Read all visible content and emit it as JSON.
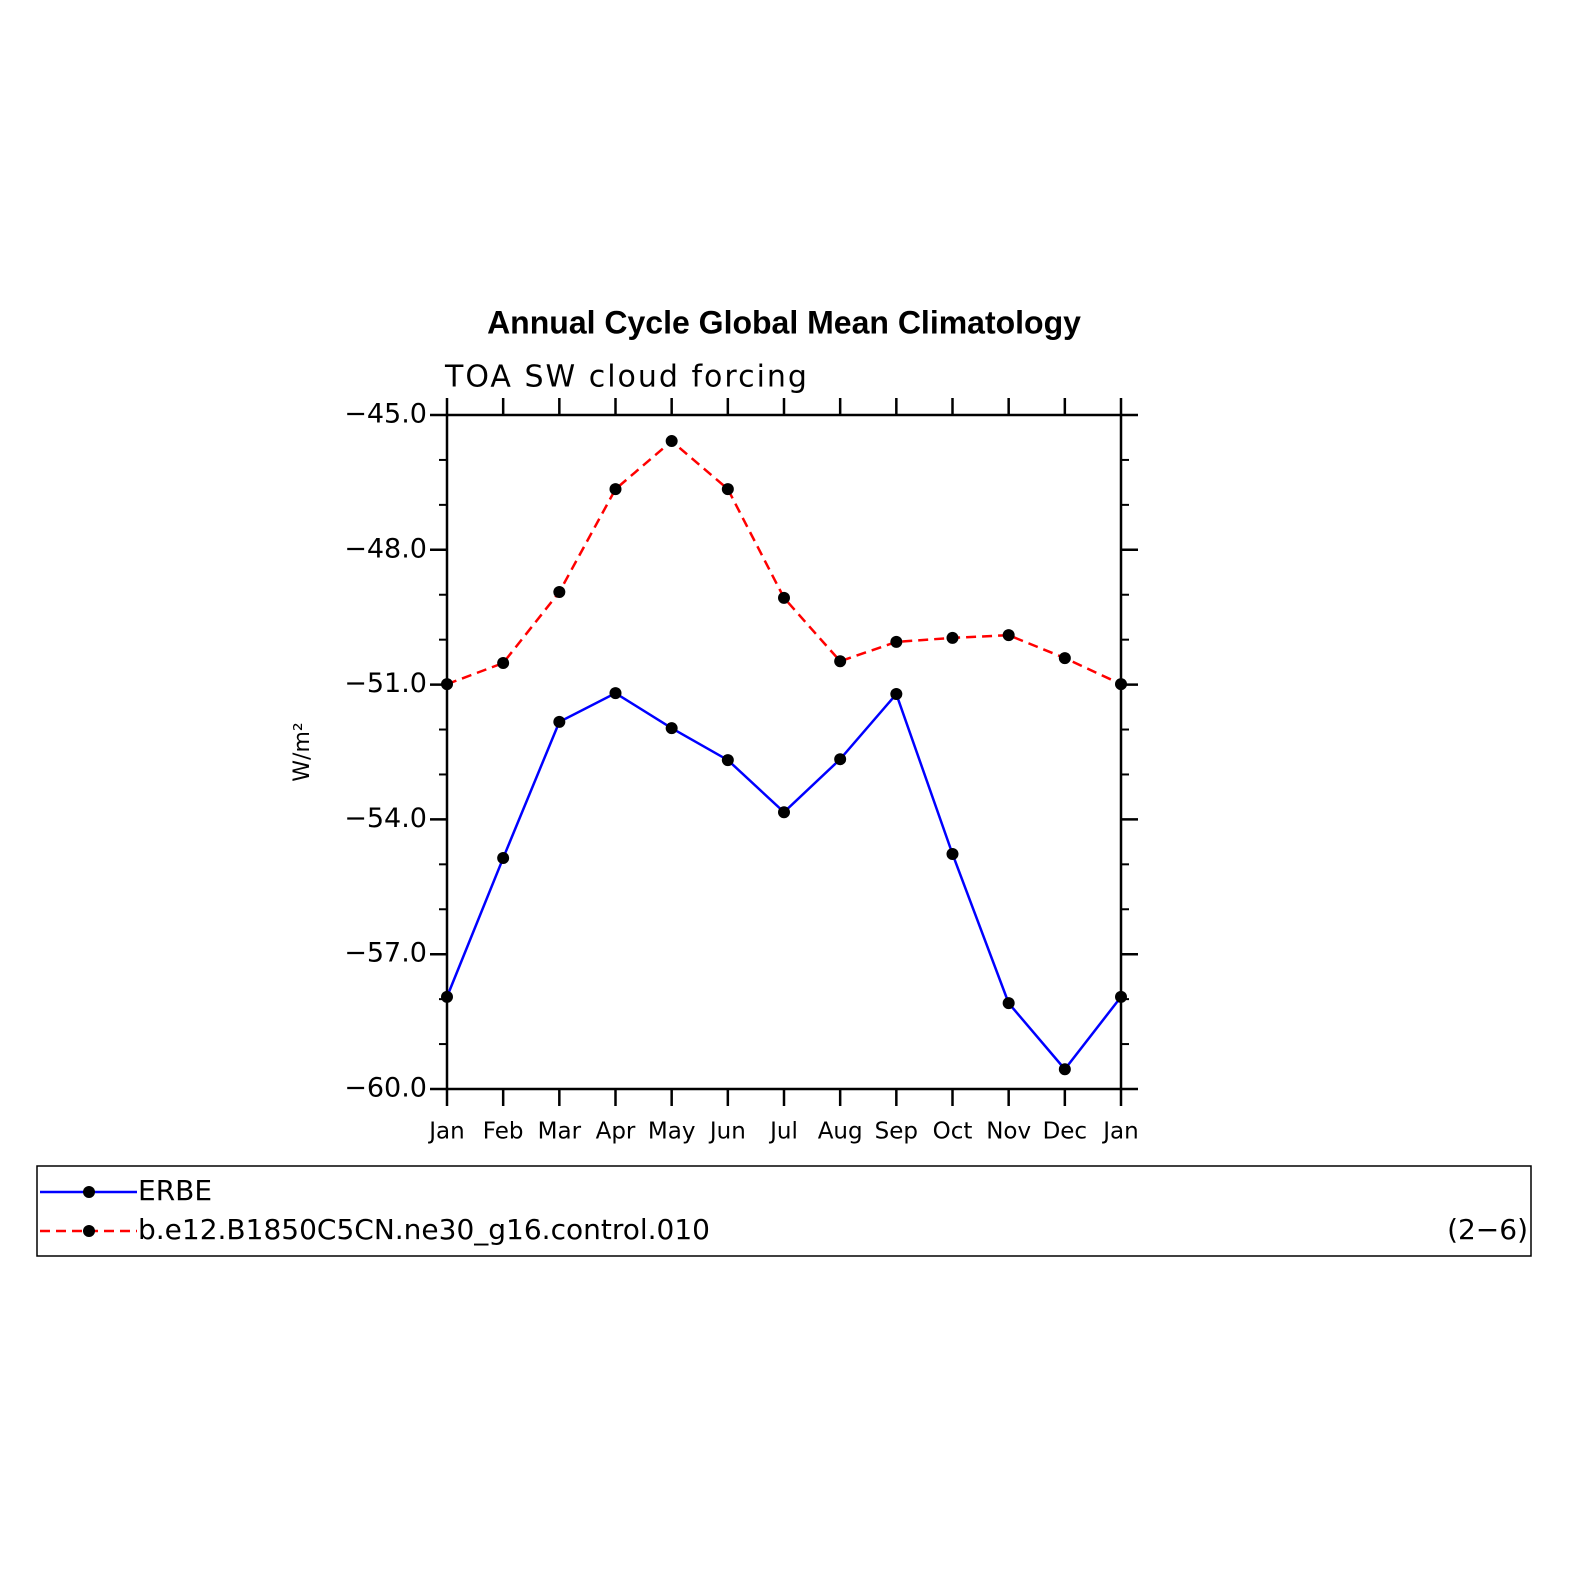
{
  "chart_data": {
    "type": "line",
    "title": "Annual Cycle Global Mean Climatology",
    "subtitle": "TOA SW cloud forcing",
    "y_label": "W/m²",
    "annotation": "(2−6)",
    "categories": [
      "Jan",
      "Feb",
      "Mar",
      "Apr",
      "May",
      "Jun",
      "Jul",
      "Aug",
      "Sep",
      "Oct",
      "Nov",
      "Dec",
      "Jan"
    ],
    "series": [
      {
        "name": "ERBE",
        "color": "#0000ff",
        "dash": false,
        "values": [
          -57.95,
          -54.86,
          -51.83,
          -51.19,
          -51.97,
          -52.68,
          -53.84,
          -52.66,
          -51.21,
          -54.77,
          -58.09,
          -59.56,
          -57.95
        ]
      },
      {
        "name": "b.e12.B1850C5CN.ne30_g16.control.010",
        "color": "#ff0000",
        "dash": true,
        "values": [
          -50.99,
          -50.52,
          -48.94,
          -46.65,
          -45.58,
          -46.65,
          -49.07,
          -50.48,
          -50.05,
          -49.96,
          -49.9,
          -50.41,
          -50.99
        ]
      }
    ],
    "ylim": [
      -60,
      -45
    ],
    "yticks": [
      {
        "value": -60,
        "label": "−60.0"
      },
      {
        "value": -57,
        "label": "−57.0"
      },
      {
        "value": -54,
        "label": "−54.0"
      },
      {
        "value": -51,
        "label": "−51.0"
      },
      {
        "value": -48,
        "label": "−48.0"
      },
      {
        "value": -45,
        "label": "−45.0"
      }
    ],
    "yminorticks": [
      -59,
      -58,
      -56,
      -55,
      -53,
      -52,
      -50,
      -49,
      -47,
      -46
    ],
    "marker_color": "#000000"
  }
}
